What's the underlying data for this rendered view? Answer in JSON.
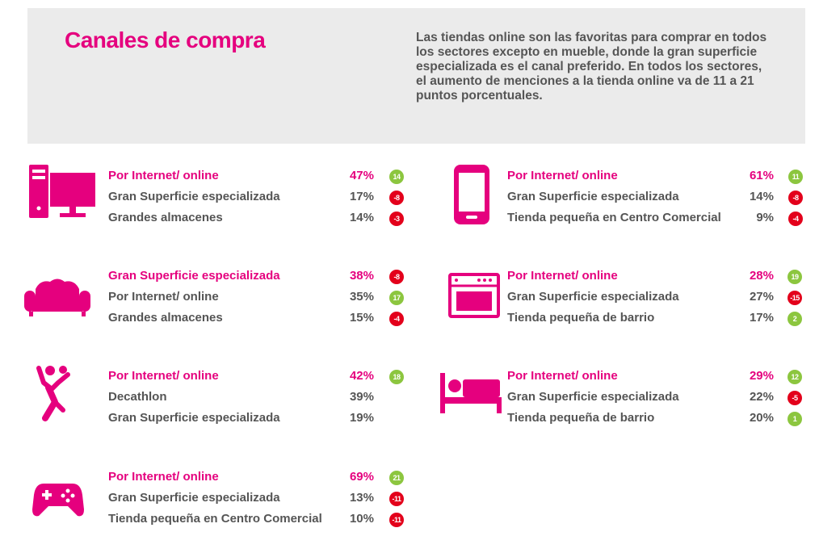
{
  "header": {
    "title": "Canales de compra",
    "description": "Las tiendas online son las favoritas para comprar en todos los sectores excepto en mueble, donde la gran superficie especializada es el canal preferido. En todos los sectores, el aumento de menciones a la tienda online va de 11 a 21 puntos porcentuales."
  },
  "colors": {
    "accent": "#e5007e",
    "positive": "#8cc63f",
    "negative": "#e3001b",
    "text": "#555555",
    "header_bg": "#ebebeb"
  },
  "chart_data": {
    "type": "table",
    "sectors": [
      {
        "icon": "computer-icon",
        "rows": [
          {
            "channel": "Por Internet/ online",
            "percent": "47%",
            "change": "14",
            "change_sign": "positive"
          },
          {
            "channel": "Gran Superficie especializada",
            "percent": "17%",
            "change": "-8",
            "change_sign": "negative"
          },
          {
            "channel": "Grandes almacenes",
            "percent": "14%",
            "change": "-3",
            "change_sign": "negative"
          }
        ]
      },
      {
        "icon": "smartphone-icon",
        "rows": [
          {
            "channel": "Por Internet/ online",
            "percent": "61%",
            "change": "11",
            "change_sign": "positive"
          },
          {
            "channel": "Gran Superficie especializada",
            "percent": "14%",
            "change": "-8",
            "change_sign": "negative"
          },
          {
            "channel": "Tienda pequeña en Centro Comercial",
            "percent": "9%",
            "change": "-4",
            "change_sign": "negative"
          }
        ]
      },
      {
        "icon": "sofa-icon",
        "rows": [
          {
            "channel": "Gran Superficie especializada",
            "percent": "38%",
            "change": "-8",
            "change_sign": "negative"
          },
          {
            "channel": "Por Internet/ online",
            "percent": "35%",
            "change": "17",
            "change_sign": "positive"
          },
          {
            "channel": "Grandes almacenes",
            "percent": "15%",
            "change": "-4",
            "change_sign": "negative"
          }
        ]
      },
      {
        "icon": "oven-icon",
        "rows": [
          {
            "channel": "Por Internet/ online",
            "percent": "28%",
            "change": "19",
            "change_sign": "positive"
          },
          {
            "channel": "Gran Superficie especializada",
            "percent": "27%",
            "change": "-15",
            "change_sign": "negative"
          },
          {
            "channel": "Tienda pequeña de barrio",
            "percent": "17%",
            "change": "2",
            "change_sign": "positive"
          }
        ]
      },
      {
        "icon": "sports-person-icon",
        "rows": [
          {
            "channel": "Por Internet/ online",
            "percent": "42%",
            "change": "18",
            "change_sign": "positive"
          },
          {
            "channel": "Decathlon",
            "percent": "39%",
            "change": "",
            "change_sign": ""
          },
          {
            "channel": "Gran Superficie especializada",
            "percent": "19%",
            "change": "",
            "change_sign": ""
          }
        ]
      },
      {
        "icon": "bed-icon",
        "rows": [
          {
            "channel": "Por Internet/ online",
            "percent": "29%",
            "change": "12",
            "change_sign": "positive"
          },
          {
            "channel": "Gran Superficie especializada",
            "percent": "22%",
            "change": "-5",
            "change_sign": "negative"
          },
          {
            "channel": "Tienda pequeña de barrio",
            "percent": "20%",
            "change": "1",
            "change_sign": "positive"
          }
        ]
      },
      {
        "icon": "gamepad-icon",
        "rows": [
          {
            "channel": "Por Internet/ online",
            "percent": "69%",
            "change": "21",
            "change_sign": "positive"
          },
          {
            "channel": "Gran Superficie especializada",
            "percent": "13%",
            "change": "-11",
            "change_sign": "negative"
          },
          {
            "channel": "Tienda pequeña en Centro Comercial",
            "percent": "10%",
            "change": "-11",
            "change_sign": "negative"
          }
        ]
      }
    ]
  }
}
